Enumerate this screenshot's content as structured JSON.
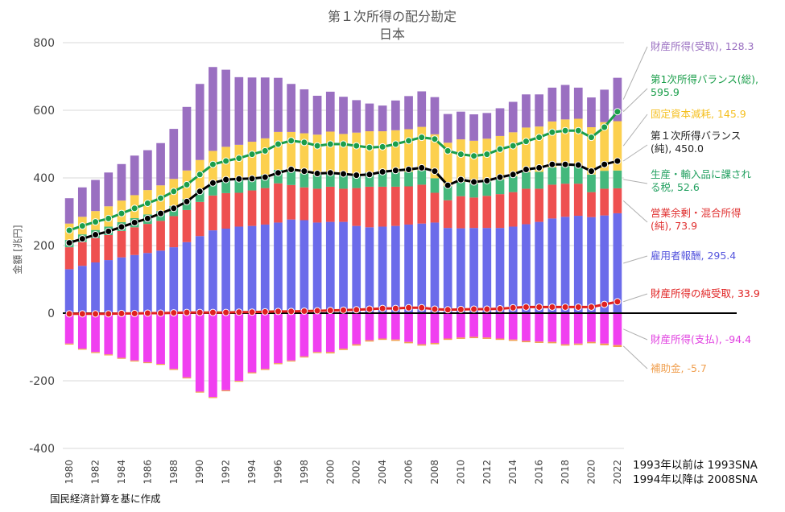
{
  "chart_data": {
    "type": "bar",
    "title": "第１次所得の配分勘定",
    "subtitle": "日本",
    "ylabel": "金額 [兆円]",
    "ylim": [
      -400,
      800
    ],
    "yticks": [
      "800",
      "600",
      "400",
      "200",
      "0",
      "-200",
      "-400"
    ],
    "categories": [
      "1980",
      "1981",
      "1982",
      "1983",
      "1984",
      "1985",
      "1986",
      "1987",
      "1988",
      "1989",
      "1990",
      "1991",
      "1992",
      "1993",
      "1994",
      "1995",
      "1996",
      "1997",
      "1998",
      "1999",
      "2000",
      "2001",
      "2002",
      "2003",
      "2004",
      "2005",
      "2006",
      "2007",
      "2008",
      "2009",
      "2010",
      "2011",
      "2012",
      "2013",
      "2014",
      "2015",
      "2016",
      "2017",
      "2018",
      "2019",
      "2020",
      "2021",
      "2022"
    ],
    "xtick_labels": [
      "1980",
      "1982",
      "1984",
      "1986",
      "1988",
      "1990",
      "1992",
      "1994",
      "1996",
      "1998",
      "2000",
      "2002",
      "2004",
      "2006",
      "2008",
      "2010",
      "2012",
      "2014",
      "2016",
      "2018",
      "2020",
      "2022"
    ],
    "stacked_series": [
      {
        "name": "雇用者報酬",
        "color": "#6b6bea",
        "values": [
          130,
          140,
          150,
          157,
          165,
          172,
          178,
          185,
          195,
          210,
          228,
          245,
          250,
          256,
          258,
          262,
          268,
          277,
          275,
          268,
          270,
          270,
          258,
          254,
          256,
          258,
          262,
          265,
          268,
          252,
          251,
          252,
          252,
          252,
          256,
          263,
          270,
          280,
          285,
          288,
          284,
          289,
          295.4
        ]
      },
      {
        "name": "営業余剰・混合所得(純)",
        "color": "#ee5050",
        "values": [
          65,
          70,
          72,
          74,
          78,
          82,
          86,
          88,
          92,
          95,
          101,
          103,
          105,
          100,
          105,
          108,
          116,
          102,
          97,
          100,
          104,
          98,
          112,
          120,
          118,
          116,
          113,
          115,
          88,
          82,
          95,
          90,
          95,
          100,
          102,
          105,
          98,
          100,
          98,
          95,
          74,
          79,
          73.9
        ]
      },
      {
        "name": "生産・輸入品に課される税",
        "color": "#44b87c",
        "values": [
          22,
          23,
          24,
          25,
          26,
          27,
          28,
          29,
          30,
          32,
          34,
          36,
          37,
          38,
          38,
          39,
          40,
          41,
          42,
          42,
          43,
          42,
          42,
          42,
          42,
          43,
          43,
          43,
          43,
          42,
          42,
          42,
          43,
          44,
          47,
          49,
          50,
          51,
          52,
          52,
          52,
          53,
          52.6
        ]
      },
      {
        "name": "固定資本減耗",
        "color": "#fcd04e",
        "values": [
          48,
          52,
          56,
          60,
          64,
          68,
          72,
          76,
          80,
          85,
          90,
          96,
          100,
          104,
          106,
          108,
          112,
          116,
          118,
          118,
          120,
          120,
          122,
          122,
          122,
          124,
          126,
          128,
          130,
          128,
          126,
          126,
          126,
          128,
          130,
          132,
          134,
          136,
          138,
          140,
          140,
          144,
          145.9
        ]
      },
      {
        "name": "財産所得(受取)",
        "color": "#9a6fc1",
        "values": [
          75,
          87,
          92,
          100,
          108,
          117,
          118,
          125,
          148,
          188,
          225,
          248,
          228,
          200,
          190,
          180,
          160,
          142,
          130,
          115,
          118,
          110,
          96,
          82,
          76,
          88,
          98,
          105,
          110,
          85,
          82,
          78,
          76,
          82,
          90,
          98,
          95,
          100,
          102,
          92,
          88,
          96,
          128.3
        ]
      }
    ],
    "negative_series": [
      {
        "name": "財産所得(支払)",
        "color": "#f03ff0",
        "values": [
          -90,
          -105,
          -115,
          -122,
          -132,
          -140,
          -145,
          -150,
          -165,
          -190,
          -232,
          -248,
          -228,
          -200,
          -175,
          -165,
          -148,
          -140,
          -128,
          -115,
          -115,
          -105,
          -92,
          -80,
          -75,
          -78,
          -85,
          -92,
          -88,
          -75,
          -72,
          -70,
          -72,
          -75,
          -78,
          -82,
          -84,
          -85,
          -92,
          -90,
          -85,
          -90,
          -94.4
        ]
      },
      {
        "name": "補助金",
        "color": "#f0a050",
        "values": [
          -3,
          -3,
          -3,
          -3,
          -3,
          -3,
          -3,
          -3,
          -3,
          -3,
          -3,
          -3,
          -3,
          -3,
          -3,
          -3,
          -3,
          -3,
          -3,
          -3,
          -4,
          -4,
          -4,
          -4,
          -4,
          -4,
          -4,
          -4,
          -4,
          -4,
          -4,
          -4,
          -4,
          -4,
          -4,
          -4,
          -4,
          -4,
          -4,
          -4,
          -4,
          -5,
          -5.7
        ]
      }
    ],
    "line_series": [
      {
        "name": "第１次所得バランス(総)",
        "color": "#1a9e4a",
        "values": [
          245,
          258,
          270,
          280,
          295,
          310,
          325,
          340,
          360,
          380,
          410,
          440,
          450,
          458,
          470,
          480,
          500,
          510,
          505,
          495,
          500,
          500,
          495,
          490,
          492,
          500,
          510,
          520,
          515,
          480,
          470,
          465,
          470,
          485,
          495,
          508,
          520,
          535,
          540,
          540,
          520,
          550,
          595.9
        ]
      },
      {
        "name": "第１次所得バランス(純)",
        "color": "#000000",
        "values": [
          208,
          220,
          232,
          242,
          255,
          268,
          280,
          295,
          310,
          330,
          360,
          385,
          395,
          397,
          398,
          402,
          415,
          425,
          420,
          413,
          415,
          412,
          408,
          410,
          418,
          422,
          425,
          430,
          420,
          378,
          395,
          388,
          392,
          402,
          410,
          425,
          430,
          440,
          440,
          438,
          420,
          440,
          450.0
        ]
      },
      {
        "name": "財産所得の純受取",
        "color": "#e02020",
        "values": [
          -2,
          -2,
          -2,
          -2,
          -1,
          -1,
          0,
          0,
          1,
          2,
          2,
          2,
          2,
          3,
          3,
          4,
          5,
          5,
          6,
          7,
          8,
          9,
          10,
          12,
          14,
          14,
          16,
          16,
          12,
          10,
          11,
          12,
          12,
          13,
          16,
          18,
          18,
          18,
          18,
          18,
          18,
          26,
          33.9
        ]
      }
    ],
    "legend": [
      {
        "text": "財産所得(受取), 128.3",
        "color": "#9a6fc1"
      },
      {
        "text": "第1次所得バランス(総),",
        "color": "#1a9e4a"
      },
      {
        "text": "595.9",
        "color": "#1a9e4a"
      },
      {
        "text": "固定資本減耗, 145.9",
        "color": "#f5bf1e"
      },
      {
        "text": "第１次所得バランス",
        "color": "#222222"
      },
      {
        "text": "(純), 450.0",
        "color": "#222222"
      },
      {
        "text": "生産・輸入品に課され",
        "color": "#22a060"
      },
      {
        "text": "る税, 52.6",
        "color": "#22a060"
      },
      {
        "text": "営業余剰・混合所得",
        "color": "#e03030"
      },
      {
        "text": "(純), 73.9",
        "color": "#e03030"
      },
      {
        "text": "雇用者報酬, 295.4",
        "color": "#5555dd"
      },
      {
        "text": "財産所得の純受取, 33.9",
        "color": "#e02020"
      },
      {
        "text": "財産所得(支払), -94.4",
        "color": "#e040e0"
      },
      {
        "text": "補助金, -5.7",
        "color": "#f0a050"
      }
    ]
  },
  "notes": {
    "sna_line1": "1993年以前は 1993SNA",
    "sna_line2": "1994年以降は 2008SNA",
    "source": "国民経済計算を基に作成"
  }
}
